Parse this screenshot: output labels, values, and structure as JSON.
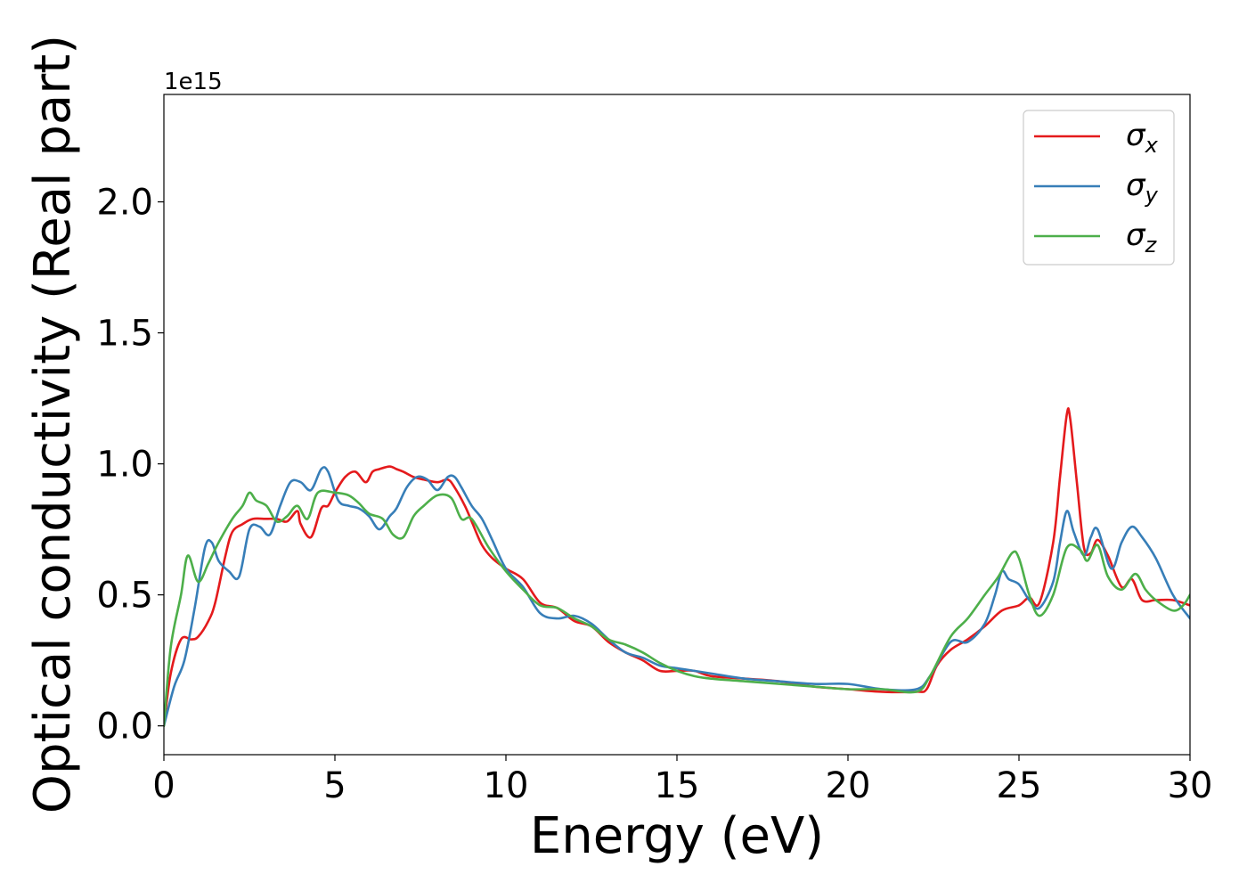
{
  "chart_data": {
    "type": "line",
    "xlabel": "Energy (eV)",
    "ylabel": "Optical conductivity (Real part)",
    "y_offset_label": "1e15",
    "xlim": [
      0,
      30
    ],
    "ylim": [
      -0.11,
      2.41
    ],
    "xticks": [
      {
        "value": 0,
        "label": "0"
      },
      {
        "value": 5,
        "label": "5"
      },
      {
        "value": 10,
        "label": "10"
      },
      {
        "value": 15,
        "label": "15"
      },
      {
        "value": 20,
        "label": "20"
      },
      {
        "value": 25,
        "label": "25"
      },
      {
        "value": 30,
        "label": "30"
      }
    ],
    "yticks": [
      {
        "value": 0.0,
        "label": "0.0"
      },
      {
        "value": 0.5,
        "label": "0.5"
      },
      {
        "value": 1.0,
        "label": "1.0"
      },
      {
        "value": 1.5,
        "label": "1.5"
      },
      {
        "value": 2.0,
        "label": "2.0"
      }
    ],
    "grid": false,
    "legend_position": "top-right",
    "series": [
      {
        "name": "σx",
        "symbol": "σ",
        "subscript": "x",
        "color": "#e41a1c",
        "x": [
          0,
          0.2,
          0.5,
          0.8,
          1.0,
          1.3,
          1.5,
          1.8,
          2.0,
          2.3,
          2.6,
          3.0,
          3.3,
          3.6,
          3.9,
          4.0,
          4.3,
          4.6,
          4.8,
          5.0,
          5.3,
          5.6,
          5.9,
          6.1,
          6.3,
          6.6,
          6.8,
          7.0,
          7.3,
          7.6,
          8.0,
          8.3,
          8.5,
          8.8,
          9.0,
          9.3,
          9.6,
          10.0,
          10.5,
          11.0,
          11.5,
          12.0,
          12.5,
          13.0,
          13.5,
          14.0,
          14.5,
          15.0,
          15.5,
          16.0,
          17.0,
          18.0,
          19.0,
          20.0,
          21.0,
          22.0,
          22.3,
          22.6,
          23.0,
          23.5,
          24.0,
          24.5,
          25.0,
          25.3,
          25.6,
          26.0,
          26.2,
          26.4,
          26.5,
          26.7,
          26.9,
          27.1,
          27.3,
          27.6,
          28.0,
          28.3,
          28.6,
          29.0,
          29.5,
          30.0
        ],
        "y": [
          0.0,
          0.2,
          0.33,
          0.33,
          0.34,
          0.4,
          0.47,
          0.65,
          0.74,
          0.77,
          0.79,
          0.79,
          0.79,
          0.78,
          0.82,
          0.77,
          0.72,
          0.83,
          0.84,
          0.89,
          0.95,
          0.97,
          0.93,
          0.97,
          0.98,
          0.99,
          0.98,
          0.97,
          0.95,
          0.94,
          0.93,
          0.94,
          0.91,
          0.84,
          0.78,
          0.69,
          0.64,
          0.6,
          0.56,
          0.47,
          0.45,
          0.4,
          0.38,
          0.32,
          0.28,
          0.25,
          0.21,
          0.21,
          0.21,
          0.19,
          0.18,
          0.17,
          0.15,
          0.14,
          0.13,
          0.13,
          0.14,
          0.23,
          0.29,
          0.33,
          0.38,
          0.44,
          0.46,
          0.49,
          0.47,
          0.7,
          0.95,
          1.19,
          1.17,
          0.92,
          0.68,
          0.66,
          0.71,
          0.65,
          0.53,
          0.56,
          0.48,
          0.48,
          0.48,
          0.46
        ]
      },
      {
        "name": "σy",
        "symbol": "σ",
        "subscript": "y",
        "color": "#377eb8",
        "x": [
          0,
          0.3,
          0.6,
          0.9,
          1.2,
          1.4,
          1.6,
          1.9,
          2.2,
          2.5,
          2.8,
          3.1,
          3.4,
          3.7,
          4.0,
          4.3,
          4.6,
          4.8,
          5.1,
          5.4,
          5.7,
          6.0,
          6.3,
          6.6,
          6.8,
          7.1,
          7.4,
          7.7,
          8.0,
          8.3,
          8.5,
          8.7,
          9.0,
          9.3,
          9.6,
          10.0,
          10.5,
          11.0,
          11.5,
          12.0,
          12.5,
          13.0,
          13.5,
          14.0,
          14.5,
          15.0,
          15.5,
          16.0,
          17.0,
          18.0,
          19.0,
          20.0,
          21.0,
          22.0,
          22.4,
          23.0,
          23.5,
          24.0,
          24.3,
          24.5,
          24.7,
          25.0,
          25.3,
          25.6,
          26.0,
          26.2,
          26.4,
          26.6,
          26.9,
          27.1,
          27.3,
          27.7,
          28.0,
          28.3,
          28.6,
          29.0,
          29.5,
          30.0
        ],
        "y": [
          0.0,
          0.15,
          0.25,
          0.45,
          0.68,
          0.7,
          0.63,
          0.59,
          0.57,
          0.75,
          0.76,
          0.73,
          0.84,
          0.93,
          0.93,
          0.9,
          0.98,
          0.97,
          0.86,
          0.84,
          0.83,
          0.8,
          0.75,
          0.8,
          0.83,
          0.91,
          0.95,
          0.94,
          0.9,
          0.95,
          0.95,
          0.91,
          0.84,
          0.79,
          0.71,
          0.6,
          0.53,
          0.43,
          0.41,
          0.42,
          0.39,
          0.33,
          0.28,
          0.26,
          0.23,
          0.22,
          0.21,
          0.2,
          0.18,
          0.17,
          0.16,
          0.16,
          0.14,
          0.14,
          0.19,
          0.32,
          0.32,
          0.39,
          0.5,
          0.59,
          0.56,
          0.54,
          0.48,
          0.45,
          0.55,
          0.7,
          0.82,
          0.74,
          0.65,
          0.72,
          0.75,
          0.6,
          0.7,
          0.76,
          0.72,
          0.64,
          0.5,
          0.41
        ]
      },
      {
        "name": "σz",
        "symbol": "σ",
        "subscript": "z",
        "color": "#4daf4a",
        "x": [
          0,
          0.2,
          0.5,
          0.7,
          1.0,
          1.3,
          1.6,
          2.0,
          2.3,
          2.5,
          2.7,
          3.0,
          3.3,
          3.6,
          3.9,
          4.2,
          4.5,
          5.0,
          5.4,
          5.7,
          6.0,
          6.4,
          6.7,
          7.0,
          7.3,
          7.6,
          8.0,
          8.4,
          8.7,
          9.0,
          9.5,
          10.0,
          10.5,
          11.0,
          11.5,
          12.0,
          12.5,
          13.0,
          13.5,
          14.0,
          14.5,
          15.0,
          15.5,
          16.0,
          17.0,
          18.0,
          19.0,
          20.0,
          21.0,
          22.0,
          22.4,
          23.0,
          23.5,
          24.0,
          24.4,
          24.8,
          25.0,
          25.3,
          25.6,
          26.0,
          26.4,
          26.8,
          27.0,
          27.3,
          27.6,
          28.0,
          28.4,
          28.7,
          29.0,
          29.5,
          29.8,
          30.0
        ],
        "y": [
          0.0,
          0.3,
          0.5,
          0.65,
          0.55,
          0.62,
          0.7,
          0.79,
          0.84,
          0.89,
          0.86,
          0.84,
          0.78,
          0.8,
          0.84,
          0.79,
          0.89,
          0.89,
          0.88,
          0.85,
          0.81,
          0.79,
          0.73,
          0.72,
          0.8,
          0.84,
          0.88,
          0.87,
          0.79,
          0.79,
          0.68,
          0.59,
          0.52,
          0.46,
          0.45,
          0.41,
          0.38,
          0.33,
          0.31,
          0.28,
          0.24,
          0.21,
          0.19,
          0.18,
          0.17,
          0.16,
          0.15,
          0.14,
          0.14,
          0.13,
          0.19,
          0.34,
          0.41,
          0.5,
          0.57,
          0.66,
          0.64,
          0.5,
          0.42,
          0.5,
          0.68,
          0.67,
          0.63,
          0.69,
          0.57,
          0.52,
          0.58,
          0.52,
          0.48,
          0.44,
          0.46,
          0.5
        ]
      }
    ]
  }
}
